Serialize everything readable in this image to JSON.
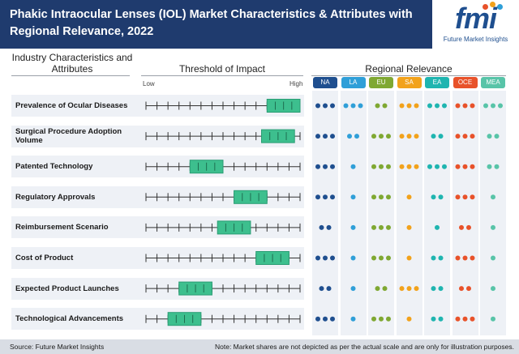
{
  "header": {
    "title": "Phakic Intraocular Lenses (IOL) Market Characteristics & Attributes with Regional Relevance, 2022"
  },
  "logo": {
    "text": "fmi",
    "tagline": "Future Market Insights",
    "dot_colors": [
      "#e8522a",
      "#f2a21b",
      "#2f9fd8"
    ]
  },
  "columns": {
    "industry": "Industry Characteristics and Attributes",
    "threshold": "Threshold of Impact",
    "regional": "Regional Relevance",
    "low": "Low",
    "high": "High"
  },
  "footer": {
    "source": "Source: Future Market Insights",
    "note": "Note: Market shares are not depicted as per the actual scale and are only for illustration purposes."
  },
  "colors": {
    "marker_fill": "#3dbf8e",
    "marker_stroke": "#2a9d74",
    "tick": "#333333"
  },
  "chart_data": {
    "type": "table",
    "scale": {
      "min": 0,
      "max": 14,
      "ticks": 15
    },
    "regions": [
      {
        "name": "NA",
        "color": "#1f4f8f"
      },
      {
        "name": "LA",
        "color": "#2f9fd8"
      },
      {
        "name": "EU",
        "color": "#7fa832"
      },
      {
        "name": "SA",
        "color": "#f2a21b"
      },
      {
        "name": "EA",
        "color": "#1fb5b0"
      },
      {
        "name": "OCE",
        "color": "#e8522a"
      },
      {
        "name": "MEA",
        "color": "#58c4a8"
      }
    ],
    "rows": [
      {
        "label": "Prevalence of Ocular Diseases",
        "impact": [
          11,
          14
        ],
        "relevance": [
          3,
          3,
          2,
          3,
          3,
          3,
          3
        ]
      },
      {
        "label": "Surgical Procedure Adoption Volume",
        "impact": [
          10.5,
          13.5
        ],
        "relevance": [
          3,
          2,
          3,
          3,
          2,
          3,
          2
        ]
      },
      {
        "label": "Patented Technology",
        "impact": [
          4,
          7
        ],
        "relevance": [
          3,
          1,
          3,
          3,
          3,
          3,
          2
        ]
      },
      {
        "label": "Regulatory Approvals",
        "impact": [
          8,
          11
        ],
        "relevance": [
          3,
          1,
          3,
          1,
          2,
          3,
          1
        ]
      },
      {
        "label": "Reimbursement Scenario",
        "impact": [
          6.5,
          9.5
        ],
        "relevance": [
          2,
          1,
          3,
          1,
          1,
          2,
          1
        ]
      },
      {
        "label": "Cost of Product",
        "impact": [
          10,
          13
        ],
        "relevance": [
          3,
          1,
          3,
          1,
          2,
          3,
          1
        ]
      },
      {
        "label": "Expected Product Launches",
        "impact": [
          3,
          6
        ],
        "relevance": [
          2,
          1,
          2,
          3,
          2,
          2,
          1
        ]
      },
      {
        "label": "Technological Advancements",
        "impact": [
          2,
          5
        ],
        "relevance": [
          3,
          1,
          3,
          1,
          2,
          3,
          1
        ]
      }
    ]
  }
}
